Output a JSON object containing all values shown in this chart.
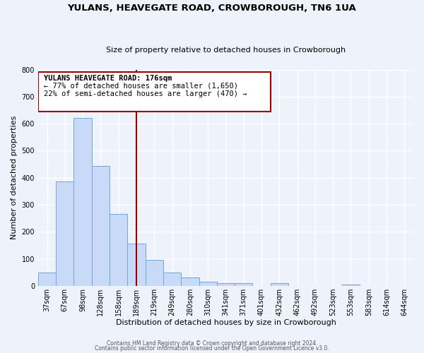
{
  "title": "YULANS, HEAVEGATE ROAD, CROWBOROUGH, TN6 1UA",
  "subtitle": "Size of property relative to detached houses in Crowborough",
  "xlabel": "Distribution of detached houses by size in Crowborough",
  "ylabel": "Number of detached properties",
  "footer_line1": "Contains HM Land Registry data © Crown copyright and database right 2024.",
  "footer_line2": "Contains public sector information licensed under the Open Government Licence v3.0.",
  "bar_labels": [
    "37sqm",
    "67sqm",
    "98sqm",
    "128sqm",
    "158sqm",
    "189sqm",
    "219sqm",
    "249sqm",
    "280sqm",
    "310sqm",
    "341sqm",
    "371sqm",
    "401sqm",
    "432sqm",
    "462sqm",
    "492sqm",
    "523sqm",
    "553sqm",
    "583sqm",
    "614sqm",
    "644sqm"
  ],
  "bar_values": [
    48,
    385,
    622,
    443,
    265,
    155,
    97,
    50,
    30,
    15,
    10,
    10,
    0,
    10,
    0,
    0,
    0,
    5,
    0,
    0,
    0
  ],
  "bar_color": "#c9daf8",
  "bar_edge_color": "#6fa8dc",
  "vline_x": 5.0,
  "vline_color": "#990000",
  "annotation_title": "YULANS HEAVEGATE ROAD: 176sqm",
  "annotation_line2": "← 77% of detached houses are smaller (1,650)",
  "annotation_line3": "22% of semi-detached houses are larger (470) →",
  "annotation_box_color": "#990000",
  "ylim": [
    0,
    800
  ],
  "yticks": [
    0,
    100,
    200,
    300,
    400,
    500,
    600,
    700,
    800
  ],
  "bg_color": "#eef2fb",
  "plot_bg_color": "#eef2fb",
  "title_fontsize": 9.5,
  "subtitle_fontsize": 8.0,
  "tick_fontsize": 7.0,
  "label_fontsize": 8.0,
  "ann_fontsize": 7.5,
  "footer_fontsize": 5.5
}
